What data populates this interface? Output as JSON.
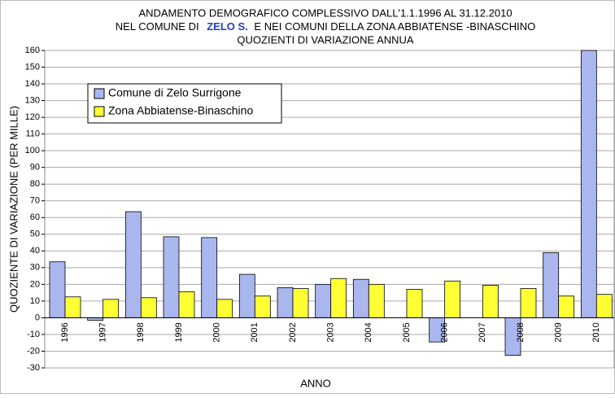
{
  "chart_data": {
    "type": "bar",
    "title": {
      "line1": "ANDAMENTO DEMOGRAFICO  COMPLESSIVO  DALL'1.1.1996 AL 31.12.2010",
      "line2": [
        "NEL COMUNE DI",
        "ZELO S.",
        "E NEI COMUNI DELLA ZONA ABBIATENSE -BINASCHINO"
      ],
      "line3": "QUOZIENTI DI VARIAZIONE ANNUA"
    },
    "xlabel": "ANNO",
    "ylabel": "QUOZIENTE DI VARIAZIONE (PER MILLE)",
    "categories": [
      "1996",
      "1997",
      "1998",
      "1999",
      "2000",
      "2001",
      "2002",
      "2003",
      "2004",
      "2005",
      "2006",
      "2007",
      "2008",
      "2009",
      "2010"
    ],
    "series": [
      {
        "name": "Comune di Zelo Surrigone",
        "color": "#aab6ee",
        "values": [
          33.5,
          -1.5,
          63.5,
          48.5,
          48,
          26,
          18,
          20,
          23,
          0,
          -14.5,
          0,
          -22.5,
          39,
          160
        ]
      },
      {
        "name": "Zona Abbiatense-Binaschino",
        "color": "#ffff33",
        "values": [
          12.5,
          11,
          12,
          15.5,
          11,
          13,
          17.5,
          23.5,
          20,
          17,
          22,
          19.5,
          17.5,
          13,
          14
        ]
      }
    ],
    "ylim": [
      -30,
      160
    ],
    "yticks": [
      -30,
      -20,
      -10,
      0,
      10,
      20,
      30,
      40,
      50,
      60,
      70,
      80,
      90,
      100,
      110,
      120,
      130,
      140,
      150,
      160
    ],
    "grid": true,
    "legend": "upper left"
  }
}
